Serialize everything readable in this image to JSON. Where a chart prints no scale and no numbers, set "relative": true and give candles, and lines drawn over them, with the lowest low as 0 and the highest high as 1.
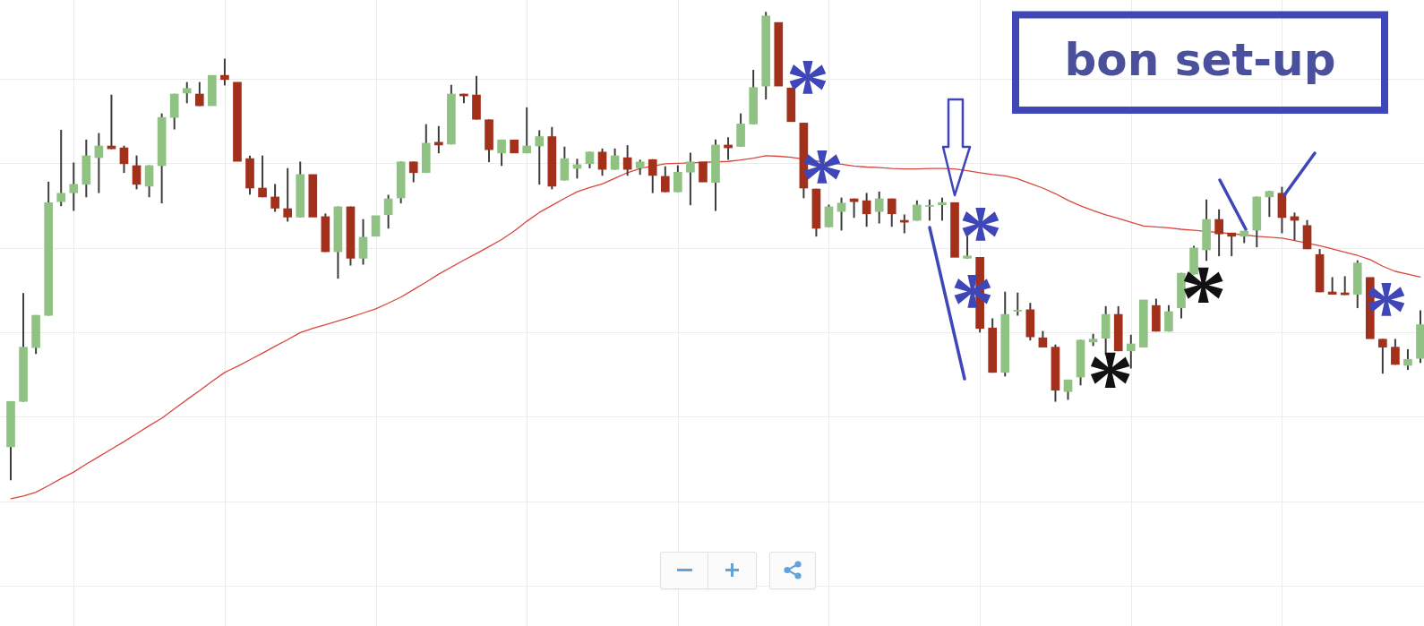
{
  "chart_data": {
    "type": "candlestick",
    "relative": true,
    "grid": true,
    "tick_labels": false,
    "annotations": [
      "bon set-up",
      "*",
      "*",
      "*",
      "*",
      "*",
      "*",
      "*"
    ],
    "categories": [
      null,
      null,
      null,
      null,
      null,
      null,
      null,
      null,
      null,
      null,
      null,
      null,
      null,
      null,
      null,
      null,
      null,
      null,
      null,
      null,
      null,
      null,
      null,
      null,
      null,
      null,
      null,
      null,
      null,
      null,
      null,
      null,
      null,
      null,
      null,
      null,
      null,
      null,
      null,
      null,
      null,
      null,
      null,
      null,
      null,
      null,
      null,
      null,
      null,
      null,
      null,
      null,
      null,
      null,
      null,
      null,
      null,
      null,
      null,
      null,
      null,
      null,
      null,
      null,
      null,
      null,
      null,
      null,
      null,
      null,
      null,
      null,
      null,
      null,
      null,
      null,
      null,
      null,
      null,
      null,
      null,
      null,
      null,
      null,
      null,
      null,
      null,
      null,
      null,
      null,
      null,
      null,
      null,
      null,
      null,
      null,
      null,
      null,
      null,
      null,
      null,
      null,
      null,
      null,
      null,
      null,
      null,
      null,
      null,
      null,
      null,
      null,
      null
    ],
    "ohlc": [
      [
        0.071,
        0.168,
        0,
        0.168
      ],
      [
        0.168,
        0.399,
        0.168,
        0.284
      ],
      [
        0.283,
        0.352,
        0.27,
        0.352
      ],
      [
        0.352,
        0.637,
        0.352,
        0.593
      ],
      [
        0.595,
        0.748,
        0.586,
        0.613
      ],
      [
        0.614,
        0.678,
        0.576,
        0.632
      ],
      [
        0.632,
        0.727,
        0.605,
        0.693
      ],
      [
        0.689,
        0.741,
        0.614,
        0.714
      ],
      [
        0.714,
        0.823,
        0.708,
        0.708
      ],
      [
        0.71,
        0.714,
        0.657,
        0.676
      ],
      [
        0.672,
        0.693,
        0.622,
        0.632
      ],
      [
        0.628,
        0.672,
        0.605,
        0.672
      ],
      [
        0.672,
        0.783,
        0.592,
        0.775
      ],
      [
        0.775,
        0.825,
        0.75,
        0.825
      ],
      [
        0.827,
        0.85,
        0.806,
        0.837
      ],
      [
        0.825,
        0.85,
        0.8,
        0.8
      ],
      [
        0.8,
        0.865,
        0.8,
        0.865
      ],
      [
        0.865,
        0.9,
        0.844,
        0.856
      ],
      [
        0.85,
        0.85,
        0.681,
        0.681
      ],
      [
        0.687,
        0.693,
        0.611,
        0.624
      ],
      [
        0.624,
        0.693,
        0.605,
        0.605
      ],
      [
        0.605,
        0.632,
        0.574,
        0.581
      ],
      [
        0.58,
        0.666,
        0.553,
        0.562
      ],
      [
        0.562,
        0.68,
        0.562,
        0.653
      ],
      [
        0.653,
        0.653,
        0.562,
        0.562
      ],
      [
        0.563,
        0.569,
        0.488,
        0.488
      ],
      [
        0.488,
        0.584,
        0.431,
        0.584
      ],
      [
        0.584,
        0.584,
        0.459,
        0.474
      ],
      [
        0.474,
        0.557,
        0.461,
        0.519
      ],
      [
        0.521,
        0.565,
        0.521,
        0.565
      ],
      [
        0.567,
        0.609,
        0.538,
        0.601
      ],
      [
        0.603,
        0.68,
        0.592,
        0.68
      ],
      [
        0.68,
        0.68,
        0.637,
        0.657
      ],
      [
        0.657,
        0.76,
        0.657,
        0.72
      ],
      [
        0.722,
        0.756,
        0.699,
        0.716
      ],
      [
        0.718,
        0.844,
        0.718,
        0.825
      ],
      [
        0.825,
        0.825,
        0.806,
        0.821
      ],
      [
        0.823,
        0.863,
        0.771,
        0.771
      ],
      [
        0.77,
        0.77,
        0.68,
        0.706
      ],
      [
        0.699,
        0.727,
        0.672,
        0.727
      ],
      [
        0.727,
        0.727,
        0.699,
        0.699
      ],
      [
        0.699,
        0.796,
        0.699,
        0.714
      ],
      [
        0.714,
        0.747,
        0.632,
        0.734
      ],
      [
        0.734,
        0.754,
        0.622,
        0.628
      ],
      [
        0.641,
        0.712,
        0.641,
        0.687
      ],
      [
        0.666,
        0.686,
        0.645,
        0.674
      ],
      [
        0.676,
        0.701,
        0.667,
        0.701
      ],
      [
        0.701,
        0.708,
        0.651,
        0.664
      ],
      [
        0.664,
        0.708,
        0.664,
        0.693
      ],
      [
        0.689,
        0.715,
        0.651,
        0.664
      ],
      [
        0.667,
        0.684,
        0.653,
        0.68
      ],
      [
        0.685,
        0.685,
        0.614,
        0.651
      ],
      [
        0.649,
        0.67,
        0.616,
        0.616
      ],
      [
        0.616,
        0.672,
        0.616,
        0.658
      ],
      [
        0.658,
        0.699,
        0.588,
        0.68
      ],
      [
        0.68,
        0.68,
        0.637,
        0.637
      ],
      [
        0.636,
        0.727,
        0.576,
        0.716
      ],
      [
        0.716,
        0.732,
        0.685,
        0.71
      ],
      [
        0.713,
        0.783,
        0.713,
        0.761
      ],
      [
        0.761,
        0.876,
        0.761,
        0.839
      ],
      [
        0.842,
        1,
        0.814,
        0.992
      ],
      [
        0.978,
        0.978,
        0.842,
        0.842
      ],
      [
        0.838,
        0.838,
        0.766,
        0.766
      ],
      [
        0.763,
        0.763,
        0.603,
        0.624
      ],
      [
        0.622,
        0.622,
        0.521,
        0.538
      ],
      [
        0.541,
        0.588,
        0.541,
        0.584
      ],
      [
        0.574,
        0.603,
        0.534,
        0.592
      ],
      [
        0.601,
        0.601,
        0.561,
        0.595
      ],
      [
        0.597,
        0.613,
        0.542,
        0.569
      ],
      [
        0.574,
        0.616,
        0.549,
        0.601
      ],
      [
        0.601,
        0.601,
        0.542,
        0.569
      ],
      [
        0.555,
        0.567,
        0.528,
        0.551
      ],
      [
        0.555,
        0.597,
        0.555,
        0.588
      ],
      [
        0.585,
        0.599,
        0.555,
        0.587
      ],
      [
        0.588,
        0.603,
        0.555,
        0.593
      ],
      [
        0.593,
        0.593,
        0.476,
        0.476
      ],
      [
        0.474,
        0.521,
        0.474,
        0.479
      ],
      [
        0.476,
        0.476,
        0.316,
        0.324
      ],
      [
        0.325,
        0.345,
        0.23,
        0.23
      ],
      [
        0.23,
        0.402,
        0.222,
        0.354
      ],
      [
        0.361,
        0.4,
        0.352,
        0.363
      ],
      [
        0.364,
        0.378,
        0.299,
        0.306
      ],
      [
        0.304,
        0.318,
        0.284,
        0.284
      ],
      [
        0.284,
        0.289,
        0.168,
        0.192
      ],
      [
        0.189,
        0.214,
        0.172,
        0.214
      ],
      [
        0.22,
        0.299,
        0.203,
        0.299
      ],
      [
        0.295,
        0.312,
        0.287,
        0.301
      ],
      [
        0.303,
        0.371,
        0.268,
        0.354
      ],
      [
        0.354,
        0.371,
        0.276,
        0.276
      ],
      [
        0.276,
        0.31,
        0.239,
        0.291
      ],
      [
        0.284,
        0.385,
        0.284,
        0.385
      ],
      [
        0.373,
        0.387,
        0.318,
        0.318
      ],
      [
        0.318,
        0.373,
        0.318,
        0.36
      ],
      [
        0.368,
        0.442,
        0.346,
        0.442
      ],
      [
        0.44,
        0.5,
        0.44,
        0.496
      ],
      [
        0.492,
        0.599,
        0.469,
        0.557
      ],
      [
        0.557,
        0.578,
        0.479,
        0.526
      ],
      [
        0.528,
        0.528,
        0.479,
        0.521
      ],
      [
        0.521,
        0.532,
        0.507,
        0.532
      ],
      [
        0.534,
        0.605,
        0.498,
        0.605
      ],
      [
        0.605,
        0.617,
        0.563,
        0.617
      ],
      [
        0.613,
        0.626,
        0.528,
        0.561
      ],
      [
        0.563,
        0.571,
        0.513,
        0.555
      ],
      [
        0.544,
        0.555,
        0.494,
        0.494
      ],
      [
        0.482,
        0.493,
        0.402,
        0.402
      ],
      [
        0.402,
        0.433,
        0.397,
        0.397
      ],
      [
        0.4,
        0.435,
        0.396,
        0.396
      ],
      [
        0.397,
        0.469,
        0.368,
        0.464
      ],
      [
        0.433,
        0.433,
        0.302,
        0.302
      ],
      [
        0.301,
        0.301,
        0.228,
        0.284
      ],
      [
        0.284,
        0.301,
        0.247,
        0.247
      ],
      [
        0.245,
        0.279,
        0.236,
        0.258
      ],
      [
        0.26,
        0.362,
        0.251,
        0.332
      ]
    ],
    "colors": [
      "#90c383",
      "#90c383",
      "#90c383",
      "#90c383",
      "#90c383",
      "#90c383",
      "#90c383",
      "#90c383",
      "#a2301b",
      "#a2301b",
      "#a2301b",
      "#90c383",
      "#90c383",
      "#90c383",
      "#90c383",
      "#a2301b",
      "#90c383",
      "#a2301b",
      "#a2301b",
      "#a2301b",
      "#a2301b",
      "#a2301b",
      "#a2301b",
      "#90c383",
      "#a2301b",
      "#a2301b",
      "#90c383",
      "#a2301b",
      "#90c383",
      "#90c383",
      "#90c383",
      "#90c383",
      "#a2301b",
      "#90c383",
      "#a2301b",
      "#90c383",
      "#a2301b",
      "#a2301b",
      "#a2301b",
      "#90c383",
      "#a2301b",
      "#90c383",
      "#90c383",
      "#a2301b",
      "#90c383",
      "#90c383",
      "#90c383",
      "#a2301b",
      "#90c383",
      "#a2301b",
      "#90c383",
      "#a2301b",
      "#a2301b",
      "#90c383",
      "#90c383",
      "#a2301b",
      "#90c383",
      "#a2301b",
      "#90c383",
      "#90c383",
      "#90c383",
      "#a2301b",
      "#a2301b",
      "#a2301b",
      "#a2301b",
      "#90c383",
      "#90c383",
      "#a2301b",
      "#a2301b",
      "#90c383",
      "#a2301b",
      "#a2301b",
      "#90c383",
      "#90c383",
      "#90c383",
      "#a2301b",
      "#90c383",
      "#a2301b",
      "#a2301b",
      "#90c383",
      "#90c383",
      "#a2301b",
      "#a2301b",
      "#a2301b",
      "#90c383",
      "#90c383",
      "#90c383",
      "#90c383",
      "#a2301b",
      "#90c383",
      "#90c383",
      "#a2301b",
      "#90c383",
      "#90c383",
      "#90c383",
      "#90c383",
      "#a2301b",
      "#a2301b",
      "#90c383",
      "#90c383",
      "#90c383",
      "#a2301b",
      "#a2301b",
      "#a2301b",
      "#a2301b",
      "#a2301b",
      "#a2301b",
      "#90c383",
      "#a2301b",
      "#a2301b",
      "#a2301b",
      "#90c383",
      "#90c383"
    ],
    "series": [
      {
        "type": "line",
        "color": "#d9463e",
        "values": [
          -0.04,
          -0.034,
          -0.026,
          -0.012,
          0.003,
          0.017,
          0.034,
          0.05,
          0.066,
          0.082,
          0.099,
          0.116,
          0.132,
          0.152,
          0.172,
          0.191,
          0.211,
          0.23,
          0.243,
          0.257,
          0.271,
          0.286,
          0.3,
          0.315,
          0.324,
          0.332,
          0.34,
          0.348,
          0.357,
          0.366,
          0.378,
          0.391,
          0.407,
          0.423,
          0.44,
          0.455,
          0.47,
          0.484,
          0.499,
          0.514,
          0.532,
          0.553,
          0.572,
          0.587,
          0.602,
          0.616,
          0.625,
          0.633,
          0.645,
          0.657,
          0.666,
          null,
          0.676,
          0.677,
          null,
          null,
          null,
          0.681,
          0.684,
          0.688,
          0.693,
          0.692,
          0.69,
          null,
          0.682,
          0.678,
          0.675,
          0.671,
          0.669,
          0.668,
          0.666,
          0.665,
          0.665,
          0.666,
          0.666,
          0.665,
          0.661,
          0.657,
          0.653,
          0.65,
          0.644,
          0.634,
          0.624,
          0.612,
          0.598,
          0.586,
          0.576,
          0.567,
          0.559,
          0.551,
          0.543,
          0.541,
          0.539,
          0.536,
          0.534,
          null,
          null,
          null,
          0.524,
          0.521,
          0.519,
          0.517,
          0.512,
          null,
          0.501,
          0.494,
          0.487,
          0.48,
          0.471,
          0.457,
          0.446,
          0.44,
          0.434
        ]
      }
    ]
  }
}
